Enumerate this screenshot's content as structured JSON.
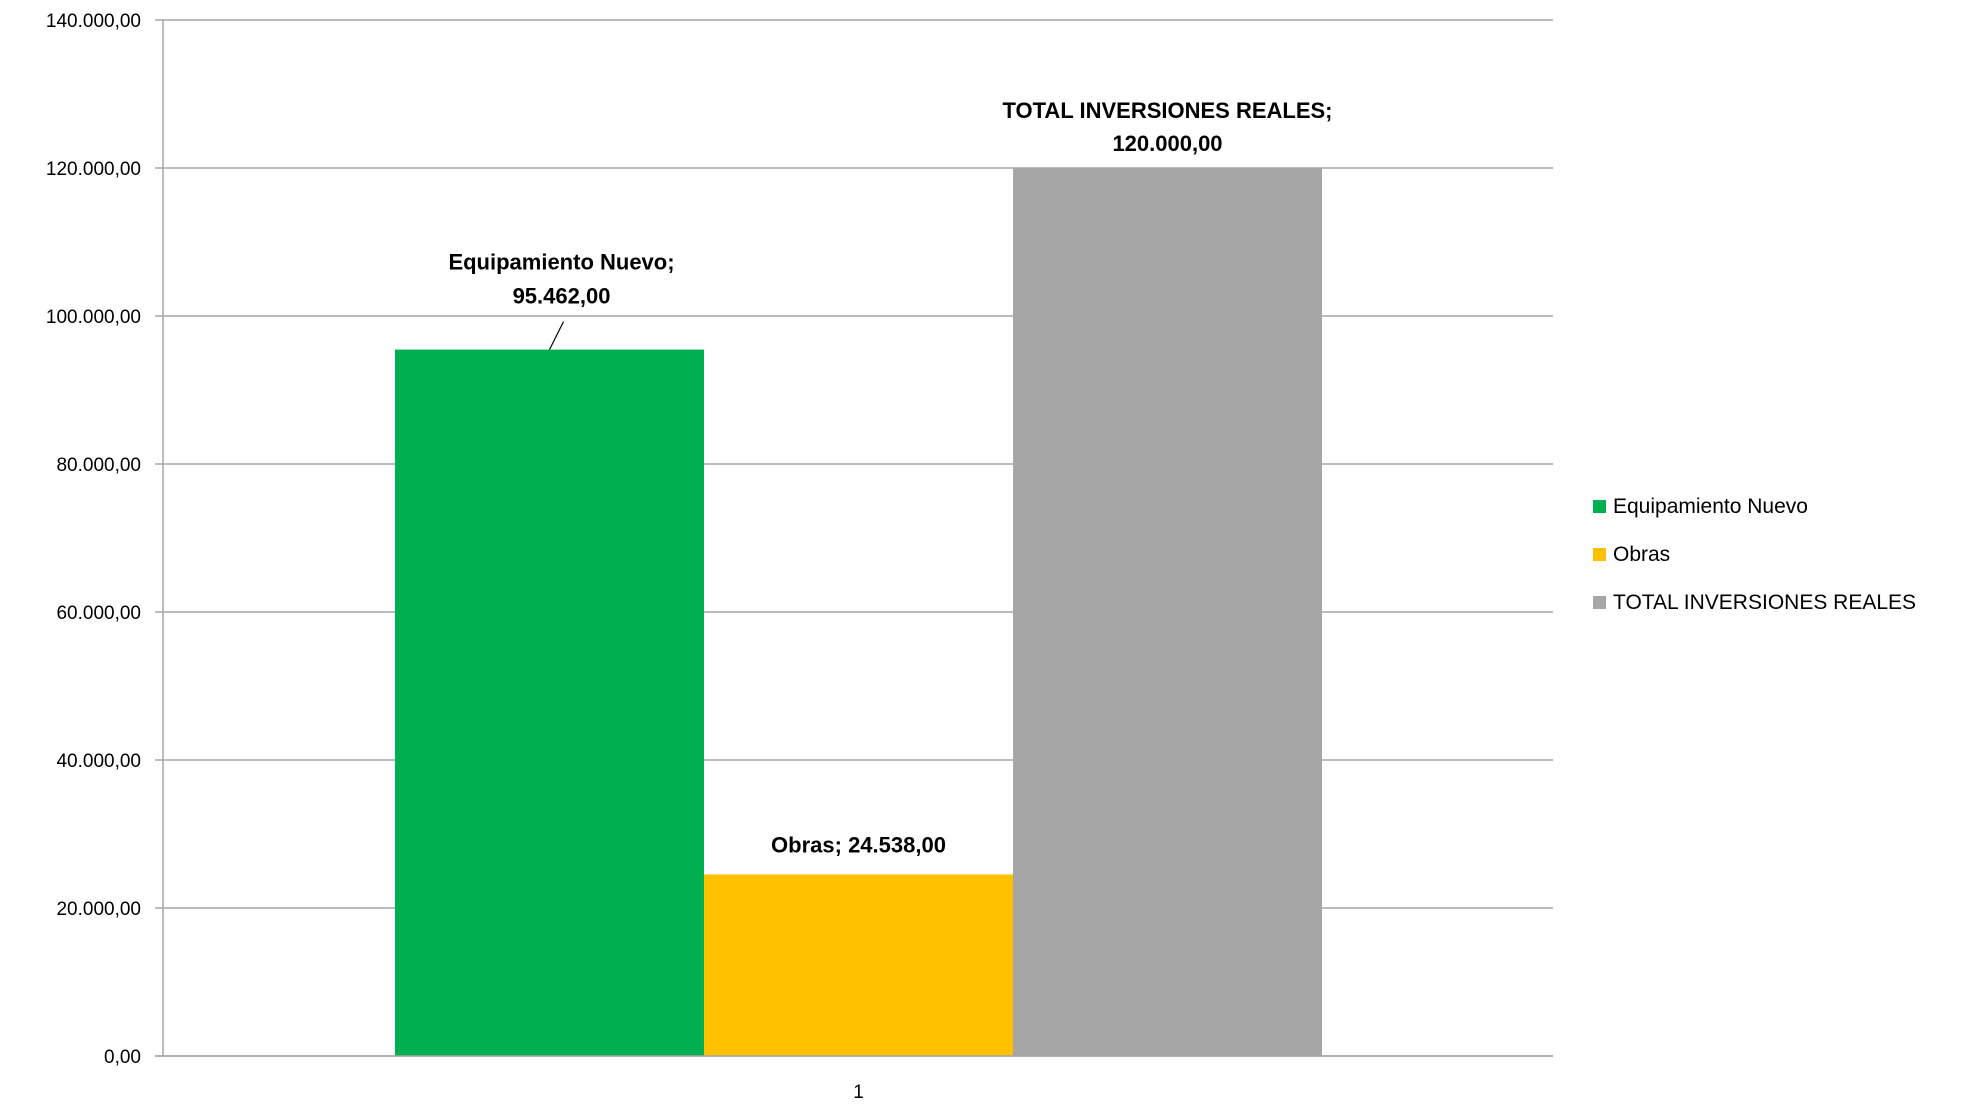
{
  "chart_data": {
    "type": "bar",
    "categories": [
      "1"
    ],
    "series": [
      {
        "name": "Equipamiento Nuevo",
        "values": [
          95462
        ],
        "color": "#00B050",
        "label_lines": [
          "Equipamiento Nuevo;",
          "95.462,00"
        ]
      },
      {
        "name": "Obras",
        "values": [
          24538
        ],
        "color": "#FFC000",
        "label_lines": [
          "Obras; 24.538,00"
        ]
      },
      {
        "name": "TOTAL INVERSIONES REALES",
        "values": [
          120000
        ],
        "color": "#A6A6A6",
        "label_lines": [
          "TOTAL INVERSIONES REALES;",
          "120.000,00"
        ]
      }
    ],
    "ylim": [
      0,
      140000
    ],
    "yticks": [
      0,
      20000,
      40000,
      60000,
      80000,
      100000,
      120000,
      140000
    ],
    "ytick_labels": [
      "0,00",
      "20.000,00",
      "40.000,00",
      "60.000,00",
      "80.000,00",
      "100.000,00",
      "120.000,00",
      "140.000,00"
    ],
    "grid": true,
    "legend": "right"
  }
}
